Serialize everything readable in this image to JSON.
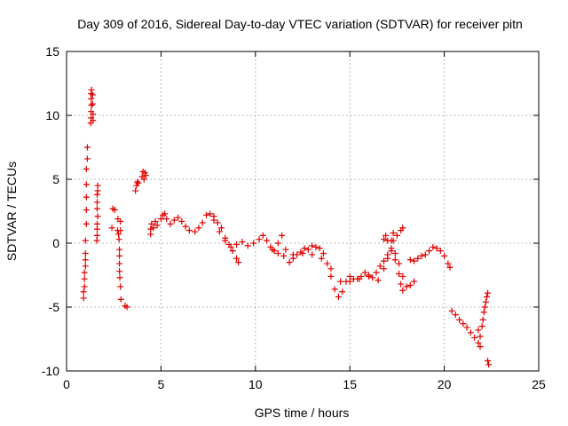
{
  "chart_data": {
    "type": "scatter",
    "title": "Day 309 of 2016, Sidereal Day-to-day VTEC variation (SDTVAR) for receiver pitn",
    "xlabel": "GPS time / hours",
    "ylabel": "SDTVAR / TECUs",
    "xlim": [
      0,
      25
    ],
    "ylim": [
      -10,
      15
    ],
    "xticks": [
      0,
      5,
      10,
      15,
      20,
      25
    ],
    "yticks": [
      -10,
      -5,
      0,
      5,
      10,
      15
    ],
    "grid": true,
    "marker": "+",
    "color": "#e00000",
    "series": [
      {
        "name": "SDTVAR",
        "points": [
          [
            0.9,
            -4.3
          ],
          [
            0.9,
            -3.8
          ],
          [
            0.95,
            -3.4
          ],
          [
            0.95,
            -2.8
          ],
          [
            0.95,
            -2.3
          ],
          [
            1.0,
            -1.8
          ],
          [
            1.0,
            -1.3
          ],
          [
            1.0,
            -0.8
          ],
          [
            1.0,
            0.2
          ],
          [
            1.05,
            1.5
          ],
          [
            1.05,
            2.6
          ],
          [
            1.05,
            3.6
          ],
          [
            1.05,
            4.6
          ],
          [
            1.05,
            5.8
          ],
          [
            1.1,
            6.6
          ],
          [
            1.1,
            7.5
          ],
          [
            1.28,
            9.4
          ],
          [
            1.3,
            9.8
          ],
          [
            1.3,
            10.3
          ],
          [
            1.32,
            10.8
          ],
          [
            1.3,
            11.3
          ],
          [
            1.3,
            11.7
          ],
          [
            1.32,
            12.0
          ],
          [
            1.38,
            11.6
          ],
          [
            1.38,
            10.9
          ],
          [
            1.4,
            10.1
          ],
          [
            1.4,
            9.6
          ],
          [
            1.6,
            0.2
          ],
          [
            1.62,
            0.6
          ],
          [
            1.62,
            1.1
          ],
          [
            1.62,
            1.5
          ],
          [
            1.65,
            2.1
          ],
          [
            1.62,
            2.7
          ],
          [
            1.62,
            3.2
          ],
          [
            1.62,
            3.8
          ],
          [
            1.65,
            4.1
          ],
          [
            1.65,
            4.5
          ],
          [
            2.4,
            1.2
          ],
          [
            2.45,
            2.7
          ],
          [
            2.55,
            2.6
          ],
          [
            2.7,
            1.0
          ],
          [
            2.72,
            1.9
          ],
          [
            2.75,
            0.7
          ],
          [
            2.78,
            0.3
          ],
          [
            2.8,
            -0.5
          ],
          [
            2.8,
            -1.0
          ],
          [
            2.8,
            -1.6
          ],
          [
            2.8,
            -2.2
          ],
          [
            2.82,
            -2.7
          ],
          [
            2.85,
            -3.4
          ],
          [
            2.88,
            -4.4
          ],
          [
            2.85,
            1.7
          ],
          [
            2.85,
            1.0
          ],
          [
            3.1,
            -4.9
          ],
          [
            3.2,
            -5.0
          ],
          [
            3.65,
            4.1
          ],
          [
            3.7,
            4.5
          ],
          [
            3.75,
            4.8
          ],
          [
            3.8,
            4.7
          ],
          [
            4.0,
            5.2
          ],
          [
            4.05,
            5.6
          ],
          [
            4.1,
            5.0
          ],
          [
            4.15,
            5.5
          ],
          [
            4.2,
            5.3
          ],
          [
            4.45,
            0.7
          ],
          [
            4.45,
            1.1
          ],
          [
            4.5,
            1.5
          ],
          [
            4.6,
            1.2
          ],
          [
            4.7,
            1.7
          ],
          [
            4.8,
            1.4
          ],
          [
            5.0,
            1.9
          ],
          [
            5.1,
            2.2
          ],
          [
            5.2,
            2.3
          ],
          [
            5.3,
            1.9
          ],
          [
            5.5,
            1.5
          ],
          [
            5.7,
            1.8
          ],
          [
            5.9,
            2.0
          ],
          [
            6.1,
            1.7
          ],
          [
            6.3,
            1.3
          ],
          [
            6.5,
            1.0
          ],
          [
            6.8,
            0.9
          ],
          [
            7.0,
            1.2
          ],
          [
            7.2,
            1.6
          ],
          [
            7.4,
            2.2
          ],
          [
            7.6,
            2.3
          ],
          [
            7.8,
            2.1
          ],
          [
            8.0,
            1.6
          ],
          [
            8.2,
            1.2
          ],
          [
            8.4,
            0.4
          ],
          [
            8.6,
            -0.1
          ],
          [
            8.8,
            -0.6
          ],
          [
            9.0,
            -1.2
          ],
          [
            9.1,
            -1.5
          ],
          [
            7.8,
            1.8
          ],
          [
            8.1,
            0.9
          ],
          [
            8.4,
            0.2
          ],
          [
            8.7,
            -0.3
          ],
          [
            9.0,
            -0.1
          ],
          [
            9.3,
            0.1
          ],
          [
            9.6,
            -0.2
          ],
          [
            9.9,
            0.0
          ],
          [
            10.2,
            0.3
          ],
          [
            10.4,
            0.6
          ],
          [
            10.6,
            0.2
          ],
          [
            10.8,
            -0.3
          ],
          [
            11.0,
            -0.6
          ],
          [
            11.2,
            0.0
          ],
          [
            11.4,
            0.6
          ],
          [
            11.6,
            -0.5
          ],
          [
            11.8,
            -1.5
          ],
          [
            12.0,
            -1.2
          ],
          [
            12.2,
            -0.9
          ],
          [
            12.4,
            -0.7
          ],
          [
            12.6,
            -0.4
          ],
          [
            12.8,
            -0.5
          ],
          [
            13.0,
            -0.2
          ],
          [
            13.2,
            -0.3
          ],
          [
            13.4,
            -0.4
          ],
          [
            13.6,
            -0.8
          ],
          [
            13.8,
            -1.6
          ],
          [
            14.0,
            -2.6
          ],
          [
            14.2,
            -3.6
          ],
          [
            14.4,
            -4.2
          ],
          [
            14.6,
            -3.8
          ],
          [
            14.8,
            -3.0
          ],
          [
            15.0,
            -2.6
          ],
          [
            15.2,
            -2.8
          ],
          [
            15.4,
            -2.8
          ],
          [
            15.6,
            -2.6
          ],
          [
            15.8,
            -2.3
          ],
          [
            16.0,
            -2.5
          ],
          [
            16.2,
            -2.7
          ],
          [
            16.4,
            -2.3
          ],
          [
            16.6,
            -1.8
          ],
          [
            16.8,
            -1.4
          ],
          [
            17.0,
            -0.9
          ],
          [
            17.2,
            -0.6
          ],
          [
            17.4,
            -0.8
          ],
          [
            17.6,
            -1.6
          ],
          [
            17.8,
            -2.6
          ],
          [
            18.0,
            -3.4
          ],
          [
            18.2,
            -3.3
          ],
          [
            18.4,
            -3.0
          ],
          [
            10.9,
            -0.5
          ],
          [
            11.2,
            -0.8
          ],
          [
            11.5,
            -1.0
          ],
          [
            12.0,
            -0.9
          ],
          [
            12.5,
            -0.8
          ],
          [
            13.0,
            -0.9
          ],
          [
            13.5,
            -1.2
          ],
          [
            14.0,
            -2.0
          ],
          [
            14.5,
            -3.0
          ],
          [
            15.0,
            -3.0
          ],
          [
            15.5,
            -2.8
          ],
          [
            16.0,
            -2.6
          ],
          [
            16.5,
            -2.9
          ],
          [
            16.8,
            -2.0
          ],
          [
            17.0,
            -1.2
          ],
          [
            17.2,
            0.2
          ],
          [
            17.3,
            0.8
          ],
          [
            16.8,
            0.3
          ],
          [
            16.9,
            0.6
          ],
          [
            17.0,
            0.2
          ],
          [
            17.2,
            -0.4
          ],
          [
            17.4,
            -1.3
          ],
          [
            17.6,
            -2.4
          ],
          [
            17.7,
            -3.2
          ],
          [
            17.8,
            -3.7
          ],
          [
            17.3,
            0.2
          ],
          [
            17.5,
            0.6
          ],
          [
            17.7,
            1.0
          ],
          [
            17.8,
            1.2
          ],
          [
            18.2,
            -1.3
          ],
          [
            18.4,
            -1.4
          ],
          [
            18.6,
            -1.2
          ],
          [
            18.8,
            -1.0
          ],
          [
            19.0,
            -0.9
          ],
          [
            19.2,
            -0.6
          ],
          [
            19.4,
            -0.3
          ],
          [
            19.6,
            -0.4
          ],
          [
            19.8,
            -0.6
          ],
          [
            20.0,
            -1.0
          ],
          [
            20.2,
            -1.6
          ],
          [
            20.3,
            -1.9
          ],
          [
            20.4,
            -5.3
          ],
          [
            20.6,
            -5.6
          ],
          [
            20.8,
            -6.0
          ],
          [
            21.0,
            -6.3
          ],
          [
            21.2,
            -6.6
          ],
          [
            21.4,
            -7.0
          ],
          [
            21.6,
            -7.4
          ],
          [
            21.8,
            -7.8
          ],
          [
            21.9,
            -8.1
          ],
          [
            21.8,
            -6.8
          ],
          [
            21.9,
            -7.3
          ],
          [
            22.0,
            -6.5
          ],
          [
            22.05,
            -6.0
          ],
          [
            22.1,
            -5.4
          ],
          [
            22.15,
            -5.0
          ],
          [
            22.2,
            -4.6
          ],
          [
            22.25,
            -4.2
          ],
          [
            22.3,
            -3.9
          ],
          [
            22.3,
            -9.2
          ],
          [
            22.35,
            -9.5
          ]
        ]
      }
    ]
  }
}
